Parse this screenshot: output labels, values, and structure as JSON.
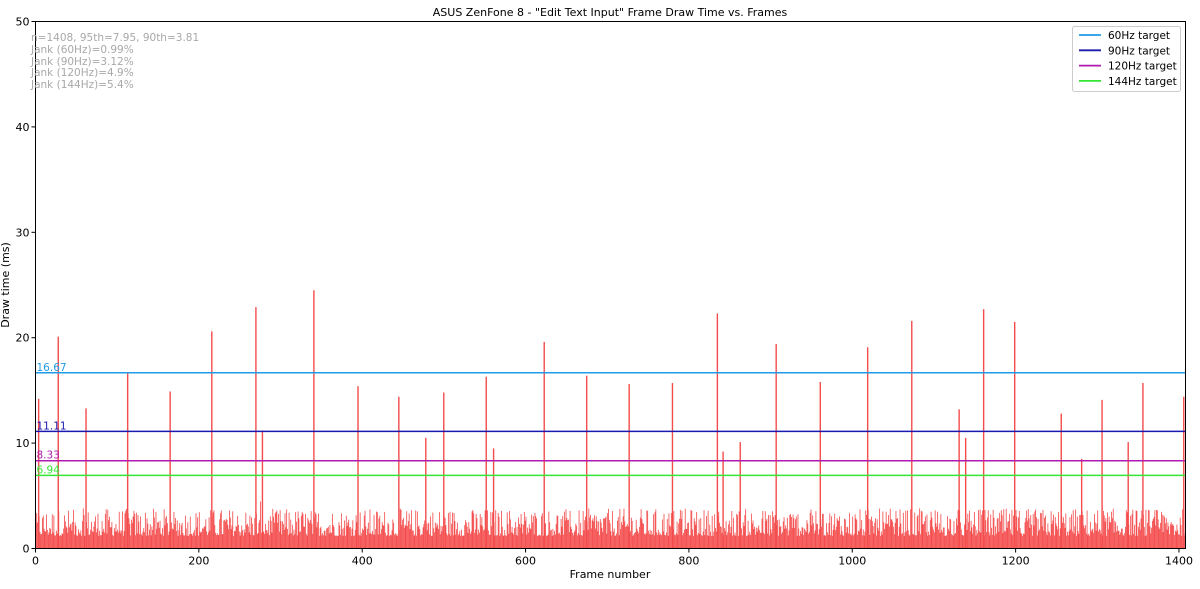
{
  "chart_data": {
    "type": "bar",
    "title": "ASUS ZenFone 8 - \"Edit Text Input\" Frame Draw Time vs. Frames",
    "xlabel": "Frame number",
    "ylabel": "Draw time (ms)",
    "xlim": [
      0,
      1408
    ],
    "ylim": [
      0,
      50
    ],
    "xticks": [
      "0",
      "200",
      "400",
      "600",
      "800",
      "1000",
      "1200",
      "1400"
    ],
    "yticks": [
      "0",
      "10",
      "20",
      "30",
      "40",
      "50"
    ],
    "grid": false,
    "legend_position": "top-right",
    "bar_color": "#f44c4c",
    "stats_lines": [
      "n=1408, 95th=7.95, 90th=3.81",
      "Jank (60Hz)=0.99%",
      "Jank (90Hz)=3.12%",
      "Jank (120Hz)=4.9%",
      "Jank (144Hz)=5.4%"
    ],
    "reference_lines": [
      {
        "name": "60Hz target",
        "value": 16.67,
        "label": "16.67",
        "color": "#1f9be8"
      },
      {
        "name": "90Hz target",
        "value": 11.11,
        "label": "11.11",
        "color": "#1a1ab0"
      },
      {
        "name": "120Hz target",
        "value": 8.33,
        "label": "8.33",
        "color": "#b01ab0"
      },
      {
        "name": "144Hz target",
        "value": 6.94,
        "label": "6.94",
        "color": "#33e633"
      }
    ],
    "baseline_range_ms": [
      1.2,
      3.8
    ],
    "spikes": [
      {
        "x": 3,
        "y": 14.2
      },
      {
        "x": 27,
        "y": 20.1
      },
      {
        "x": 61,
        "y": 13.3
      },
      {
        "x": 112,
        "y": 16.6
      },
      {
        "x": 164,
        "y": 14.9
      },
      {
        "x": 215,
        "y": 20.6
      },
      {
        "x": 269,
        "y": 22.9
      },
      {
        "x": 277,
        "y": 11.2
      },
      {
        "x": 340,
        "y": 24.5
      },
      {
        "x": 394,
        "y": 15.4
      },
      {
        "x": 444,
        "y": 14.4
      },
      {
        "x": 477,
        "y": 10.5
      },
      {
        "x": 499,
        "y": 14.8
      },
      {
        "x": 551,
        "y": 16.3
      },
      {
        "x": 560,
        "y": 9.5
      },
      {
        "x": 622,
        "y": 19.6
      },
      {
        "x": 674,
        "y": 16.4
      },
      {
        "x": 726,
        "y": 15.6
      },
      {
        "x": 779,
        "y": 15.7
      },
      {
        "x": 834,
        "y": 22.3
      },
      {
        "x": 841,
        "y": 9.2
      },
      {
        "x": 862,
        "y": 10.1
      },
      {
        "x": 906,
        "y": 19.4
      },
      {
        "x": 960,
        "y": 15.8
      },
      {
        "x": 1018,
        "y": 19.1
      },
      {
        "x": 1072,
        "y": 21.6
      },
      {
        "x": 1130,
        "y": 13.2
      },
      {
        "x": 1138,
        "y": 10.5
      },
      {
        "x": 1160,
        "y": 22.7
      },
      {
        "x": 1198,
        "y": 21.5
      },
      {
        "x": 1255,
        "y": 12.8
      },
      {
        "x": 1280,
        "y": 8.5
      },
      {
        "x": 1305,
        "y": 14.1
      },
      {
        "x": 1337,
        "y": 10.1
      },
      {
        "x": 1355,
        "y": 15.7
      },
      {
        "x": 1405,
        "y": 14.4
      }
    ]
  }
}
